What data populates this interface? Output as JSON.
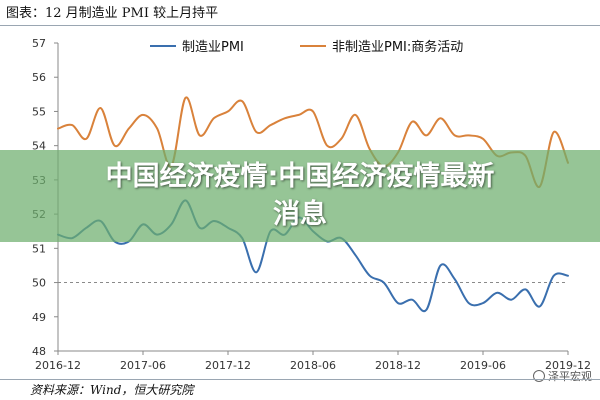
{
  "figure": {
    "title": "图表：12 月制造业 PMI 较上月持平",
    "source": "资料来源：Wind，恒大研究院",
    "watermark": "泽平宏观"
  },
  "overlay": {
    "line1": "中国经济疫情:中国经济疫情最新",
    "line2": "消息"
  },
  "chart_data": {
    "type": "line",
    "title": "图表：12 月制造业 PMI 较上月持平",
    "xlabel": "",
    "ylabel": "",
    "ylim": [
      48,
      57
    ],
    "yticks": [
      48,
      49,
      50,
      51,
      52,
      53,
      54,
      55,
      56,
      57
    ],
    "x_range": [
      "2016-12",
      "2019-12"
    ],
    "x_ticks": [
      "2016-12",
      "2017-06",
      "2017-12",
      "2018-06",
      "2018-12",
      "2019-06",
      "2019-12"
    ],
    "reference_line": 50,
    "grid": false,
    "legend_position": "top",
    "x": [
      "2016-12",
      "2017-01",
      "2017-02",
      "2017-03",
      "2017-04",
      "2017-05",
      "2017-06",
      "2017-07",
      "2017-08",
      "2017-09",
      "2017-10",
      "2017-11",
      "2017-12",
      "2018-01",
      "2018-02",
      "2018-03",
      "2018-04",
      "2018-05",
      "2018-06",
      "2018-07",
      "2018-08",
      "2018-09",
      "2018-10",
      "2018-11",
      "2018-12",
      "2019-01",
      "2019-02",
      "2019-03",
      "2019-04",
      "2019-05",
      "2019-06",
      "2019-07",
      "2019-08",
      "2019-09",
      "2019-10",
      "2019-11",
      "2019-12"
    ],
    "series": [
      {
        "name": "制造业PMI",
        "color": "#3a6fae",
        "values": [
          51.4,
          51.3,
          51.6,
          51.8,
          51.2,
          51.2,
          51.7,
          51.4,
          51.7,
          52.4,
          51.6,
          51.8,
          51.6,
          51.3,
          50.3,
          51.5,
          51.4,
          51.9,
          51.5,
          51.2,
          51.3,
          50.8,
          50.2,
          50.0,
          49.4,
          49.5,
          49.2,
          50.5,
          50.1,
          49.4,
          49.4,
          49.7,
          49.5,
          49.8,
          49.3,
          50.2,
          50.2
        ]
      },
      {
        "name": "非制造业PMI:商务活动",
        "color": "#d9823b",
        "values": [
          54.5,
          54.6,
          54.2,
          55.1,
          54.0,
          54.5,
          54.9,
          54.5,
          53.4,
          55.4,
          54.3,
          54.8,
          55.0,
          55.3,
          54.4,
          54.6,
          54.8,
          54.9,
          55.0,
          54.0,
          54.2,
          54.9,
          53.9,
          53.4,
          53.8,
          54.7,
          54.3,
          54.8,
          54.3,
          54.3,
          54.2,
          53.7,
          53.8,
          53.7,
          52.8,
          54.4,
          53.5
        ]
      }
    ]
  }
}
